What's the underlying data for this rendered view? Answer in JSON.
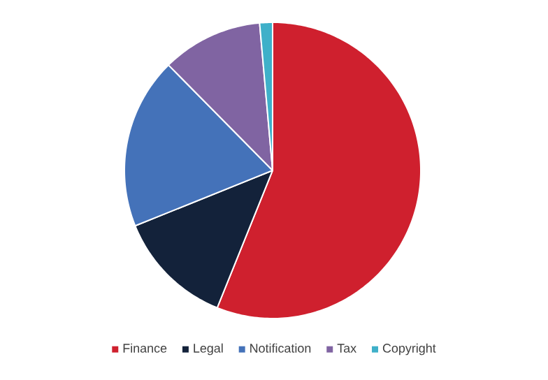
{
  "chart_data": {
    "type": "pie",
    "categories": [
      "Finance",
      "Legal",
      "Notification",
      "Tax",
      "Copyright"
    ],
    "values": [
      56.1,
      12.8,
      18.7,
      11,
      1.4
    ],
    "colors": [
      "#cf202e",
      "#13223a",
      "#4472b9",
      "#8064a2",
      "#3fb0c9"
    ],
    "legend": "bottom"
  }
}
